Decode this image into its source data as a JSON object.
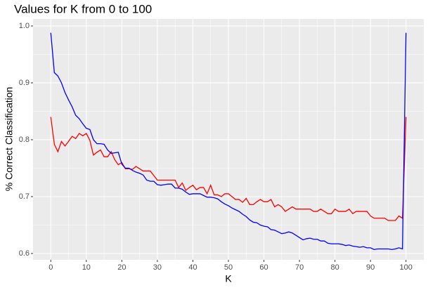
{
  "chart_data": {
    "type": "line",
    "title": "Values for K from 0 to 100",
    "x_label": "K",
    "y_label": "% Correct Classification",
    "x": [
      0,
      1,
      2,
      3,
      4,
      5,
      6,
      7,
      8,
      9,
      10,
      11,
      12,
      13,
      14,
      15,
      16,
      17,
      18,
      19,
      20,
      21,
      22,
      23,
      24,
      25,
      26,
      27,
      28,
      29,
      30,
      31,
      32,
      33,
      34,
      35,
      36,
      37,
      38,
      39,
      40,
      41,
      42,
      43,
      44,
      45,
      46,
      47,
      48,
      49,
      50,
      51,
      52,
      53,
      54,
      55,
      56,
      57,
      58,
      59,
      60,
      61,
      62,
      63,
      64,
      65,
      66,
      67,
      68,
      69,
      70,
      71,
      72,
      73,
      74,
      75,
      76,
      77,
      78,
      79,
      80,
      81,
      82,
      83,
      84,
      85,
      86,
      87,
      88,
      89,
      90,
      91,
      92,
      93,
      94,
      95,
      96,
      97,
      98,
      99,
      100
    ],
    "series": [
      {
        "color": "#ff0000",
        "values": [
          0.84,
          0.792,
          0.779,
          0.797,
          0.789,
          0.797,
          0.806,
          0.802,
          0.811,
          0.807,
          0.811,
          0.799,
          0.773,
          0.778,
          0.782,
          0.77,
          0.77,
          0.779,
          0.765,
          0.756,
          0.76,
          0.749,
          0.749,
          0.748,
          0.753,
          0.749,
          0.745,
          0.745,
          0.745,
          0.737,
          0.729,
          0.729,
          0.729,
          0.729,
          0.729,
          0.729,
          0.716,
          0.724,
          0.711,
          0.716,
          0.72,
          0.712,
          0.716,
          0.716,
          0.705,
          0.72,
          0.703,
          0.703,
          0.7,
          0.705,
          0.705,
          0.7,
          0.695,
          0.695,
          0.69,
          0.697,
          0.686,
          0.686,
          0.691,
          0.695,
          0.691,
          0.691,
          0.695,
          0.682,
          0.686,
          0.682,
          0.674,
          0.678,
          0.682,
          0.678,
          0.678,
          0.678,
          0.678,
          0.678,
          0.674,
          0.674,
          0.678,
          0.674,
          0.67,
          0.67,
          0.678,
          0.674,
          0.674,
          0.674,
          0.678,
          0.67,
          0.674,
          0.674,
          0.674,
          0.674,
          0.666,
          0.662,
          0.662,
          0.662,
          0.662,
          0.658,
          0.658,
          0.658,
          0.666,
          0.662,
          0.84
        ]
      },
      {
        "color": "#0000ff",
        "values": [
          0.988,
          0.918,
          0.912,
          0.9,
          0.883,
          0.87,
          0.858,
          0.843,
          0.837,
          0.828,
          0.82,
          0.818,
          0.8,
          0.793,
          0.793,
          0.792,
          0.782,
          0.776,
          0.777,
          0.778,
          0.757,
          0.75,
          0.75,
          0.746,
          0.743,
          0.741,
          0.738,
          0.729,
          0.727,
          0.727,
          0.721,
          0.72,
          0.721,
          0.722,
          0.722,
          0.715,
          0.715,
          0.713,
          0.708,
          0.704,
          0.705,
          0.705,
          0.705,
          0.702,
          0.699,
          0.699,
          0.698,
          0.696,
          0.691,
          0.687,
          0.684,
          0.68,
          0.677,
          0.674,
          0.669,
          0.665,
          0.659,
          0.655,
          0.654,
          0.65,
          0.648,
          0.647,
          0.642,
          0.641,
          0.638,
          0.635,
          0.636,
          0.638,
          0.636,
          0.632,
          0.628,
          0.624,
          0.626,
          0.627,
          0.625,
          0.625,
          0.622,
          0.622,
          0.618,
          0.617,
          0.617,
          0.617,
          0.616,
          0.614,
          0.615,
          0.613,
          0.612,
          0.611,
          0.612,
          0.61,
          0.61,
          0.607,
          0.608,
          0.608,
          0.608,
          0.608,
          0.607,
          0.608,
          0.61,
          0.608,
          0.988
        ]
      }
    ],
    "xlim": [
      -5,
      105
    ],
    "ylim": [
      0.5889,
      1.0123
    ],
    "xticks": [
      0,
      10,
      20,
      30,
      40,
      50,
      60,
      70,
      80,
      90,
      100
    ],
    "yticks": [
      0.6,
      0.7,
      0.8,
      0.9,
      {
        "value": 1,
        "label": "1.0"
      }
    ],
    "grid": true
  }
}
